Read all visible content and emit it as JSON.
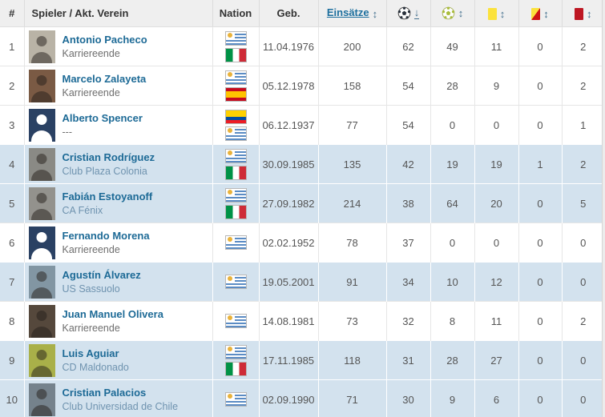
{
  "header": {
    "rank": "#",
    "player": "Spieler / Akt. Verein",
    "nation": "Nation",
    "birthdate": "Geb.",
    "appearances": "Einsätze",
    "goals_icon": "soccer-ball-icon",
    "assists_icon": "assist-ball-icon",
    "yellow_icon": "yellow-card-icon",
    "yellow_red_icon": "yellow-red-card-icon",
    "red_icon": "red-card-icon"
  },
  "icons": {
    "sort_both": "↕",
    "sort_desc": "↓"
  },
  "colors": {
    "link_blue": "#1d6f9e",
    "club_link_blue": "#6f93af",
    "highlight_row": "#d3e2ee",
    "header_bg": "#efefef",
    "yellow_card": "#fbe23c",
    "red_card": "#bd1622"
  },
  "players": [
    {
      "rank": "1",
      "name": "Antonio Pacheco",
      "club": "Karriereende",
      "club_is_link": false,
      "nations": [
        "Uruguay",
        "Italien"
      ],
      "birthdate": "11.04.1976",
      "appearances": "200",
      "goals": "62",
      "assists": "49",
      "yellow": "11",
      "yellow_red": "0",
      "red": "2",
      "highlighted": false,
      "avatar": {
        "type": "photo",
        "bg": "#b9b3a6"
      }
    },
    {
      "rank": "2",
      "name": "Marcelo Zalayeta",
      "club": "Karriereende",
      "club_is_link": false,
      "nations": [
        "Uruguay",
        "Spanien"
      ],
      "birthdate": "05.12.1978",
      "appearances": "158",
      "goals": "54",
      "assists": "28",
      "yellow": "9",
      "yellow_red": "0",
      "red": "2",
      "highlighted": false,
      "avatar": {
        "type": "photo",
        "bg": "#7a5a44"
      }
    },
    {
      "rank": "3",
      "name": "Alberto Spencer",
      "club": "---",
      "club_is_link": false,
      "nations": [
        "Ecuador",
        "Uruguay"
      ],
      "birthdate": "06.12.1937",
      "appearances": "77",
      "goals": "54",
      "assists": "0",
      "yellow": "0",
      "yellow_red": "0",
      "red": "1",
      "highlighted": false,
      "avatar": {
        "type": "silhouette",
        "bg": ""
      }
    },
    {
      "rank": "4",
      "name": "Cristian Rodríguez",
      "club": "Club Plaza Colonia",
      "club_is_link": true,
      "nations": [
        "Uruguay",
        "Italien"
      ],
      "birthdate": "30.09.1985",
      "appearances": "135",
      "goals": "42",
      "assists": "19",
      "yellow": "19",
      "yellow_red": "1",
      "red": "2",
      "highlighted": true,
      "avatar": {
        "type": "photo",
        "bg": "#8a8a85"
      }
    },
    {
      "rank": "5",
      "name": "Fabián Estoyanoff",
      "club": "CA Fénix",
      "club_is_link": true,
      "nations": [
        "Uruguay",
        "Italien"
      ],
      "birthdate": "27.09.1982",
      "appearances": "214",
      "goals": "38",
      "assists": "64",
      "yellow": "20",
      "yellow_red": "0",
      "red": "5",
      "highlighted": true,
      "avatar": {
        "type": "photo",
        "bg": "#93928d"
      }
    },
    {
      "rank": "6",
      "name": "Fernando Morena",
      "club": "Karriereende",
      "club_is_link": false,
      "nations": [
        "Uruguay"
      ],
      "birthdate": "02.02.1952",
      "appearances": "78",
      "goals": "37",
      "assists": "0",
      "yellow": "0",
      "yellow_red": "0",
      "red": "0",
      "highlighted": false,
      "avatar": {
        "type": "silhouette",
        "bg": ""
      }
    },
    {
      "rank": "7",
      "name": "Agustín Álvarez",
      "club": "US Sassuolo",
      "club_is_link": true,
      "nations": [
        "Uruguay"
      ],
      "birthdate": "19.05.2001",
      "appearances": "91",
      "goals": "34",
      "assists": "10",
      "yellow": "12",
      "yellow_red": "0",
      "red": "0",
      "highlighted": true,
      "avatar": {
        "type": "photo",
        "bg": "#8296a3"
      }
    },
    {
      "rank": "8",
      "name": "Juan Manuel Olivera",
      "club": "Karriereende",
      "club_is_link": false,
      "nations": [
        "Uruguay"
      ],
      "birthdate": "14.08.1981",
      "appearances": "73",
      "goals": "32",
      "assists": "8",
      "yellow": "11",
      "yellow_red": "0",
      "red": "2",
      "highlighted": false,
      "avatar": {
        "type": "photo",
        "bg": "#55483c"
      }
    },
    {
      "rank": "9",
      "name": "Luis Aguiar",
      "club": "CD Maldonado",
      "club_is_link": true,
      "nations": [
        "Uruguay",
        "Italien"
      ],
      "birthdate": "17.11.1985",
      "appearances": "118",
      "goals": "31",
      "assists": "28",
      "yellow": "27",
      "yellow_red": "0",
      "red": "0",
      "highlighted": true,
      "avatar": {
        "type": "photo",
        "bg": "#a9b049"
      }
    },
    {
      "rank": "10",
      "name": "Cristian Palacios",
      "club": "Club Universidad de Chile",
      "club_is_link": true,
      "nations": [
        "Uruguay"
      ],
      "birthdate": "02.09.1990",
      "appearances": "71",
      "goals": "30",
      "assists": "9",
      "yellow": "6",
      "yellow_red": "0",
      "red": "0",
      "highlighted": true,
      "avatar": {
        "type": "photo",
        "bg": "#75828c"
      }
    }
  ]
}
